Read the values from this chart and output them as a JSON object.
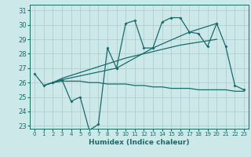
{
  "xlabel": "Humidex (Indice chaleur)",
  "bg_color": "#cce8e8",
  "grid_color": "#aacccc",
  "line_color": "#1a6b6b",
  "xlim": [
    -0.5,
    23.5
  ],
  "ylim": [
    22.8,
    31.4
  ],
  "yticks": [
    23,
    24,
    25,
    26,
    27,
    28,
    29,
    30,
    31
  ],
  "xticks": [
    0,
    1,
    2,
    3,
    4,
    5,
    6,
    7,
    8,
    9,
    10,
    11,
    12,
    13,
    14,
    15,
    16,
    17,
    18,
    19,
    20,
    21,
    22,
    23
  ],
  "line1": {
    "x": [
      0,
      1,
      2,
      3,
      4,
      5,
      6,
      7,
      8,
      9,
      10,
      11,
      12,
      13,
      14,
      15,
      16,
      17,
      18,
      19,
      20,
      21,
      22,
      23
    ],
    "y": [
      26.6,
      25.8,
      26.0,
      26.2,
      24.7,
      25.0,
      22.7,
      23.1,
      28.4,
      27.0,
      30.1,
      30.3,
      28.4,
      28.4,
      30.2,
      30.5,
      30.5,
      29.5,
      29.4,
      28.5,
      30.1,
      28.5,
      25.8,
      25.5
    ]
  },
  "line2": {
    "x": [
      1,
      2,
      3,
      4,
      5,
      6,
      7,
      8,
      9,
      10,
      11,
      12,
      13,
      14,
      15,
      16,
      17,
      18,
      19,
      20,
      21,
      22,
      23
    ],
    "y": [
      25.8,
      26.0,
      26.1,
      26.1,
      26.1,
      26.0,
      26.0,
      25.9,
      25.9,
      25.9,
      25.8,
      25.8,
      25.7,
      25.7,
      25.6,
      25.6,
      25.6,
      25.5,
      25.5,
      25.5,
      25.5,
      25.4,
      25.4
    ]
  },
  "line3": {
    "x": [
      1,
      2,
      3,
      4,
      5,
      6,
      7,
      8,
      9,
      10,
      11,
      12,
      13,
      14,
      15,
      16,
      17,
      18,
      19,
      20
    ],
    "y": [
      25.8,
      26.0,
      26.3,
      26.5,
      26.7,
      26.9,
      27.1,
      27.3,
      27.5,
      27.7,
      27.85,
      28.0,
      28.15,
      28.3,
      28.45,
      28.6,
      28.7,
      28.8,
      28.9,
      29.0
    ]
  },
  "line4": {
    "x": [
      2,
      3,
      9,
      13,
      17,
      20
    ],
    "y": [
      26.0,
      26.2,
      27.0,
      28.4,
      29.5,
      30.1
    ]
  },
  "xtick_fontsize": 5.0,
  "ytick_fontsize": 6.0,
  "xlabel_fontsize": 6.5
}
